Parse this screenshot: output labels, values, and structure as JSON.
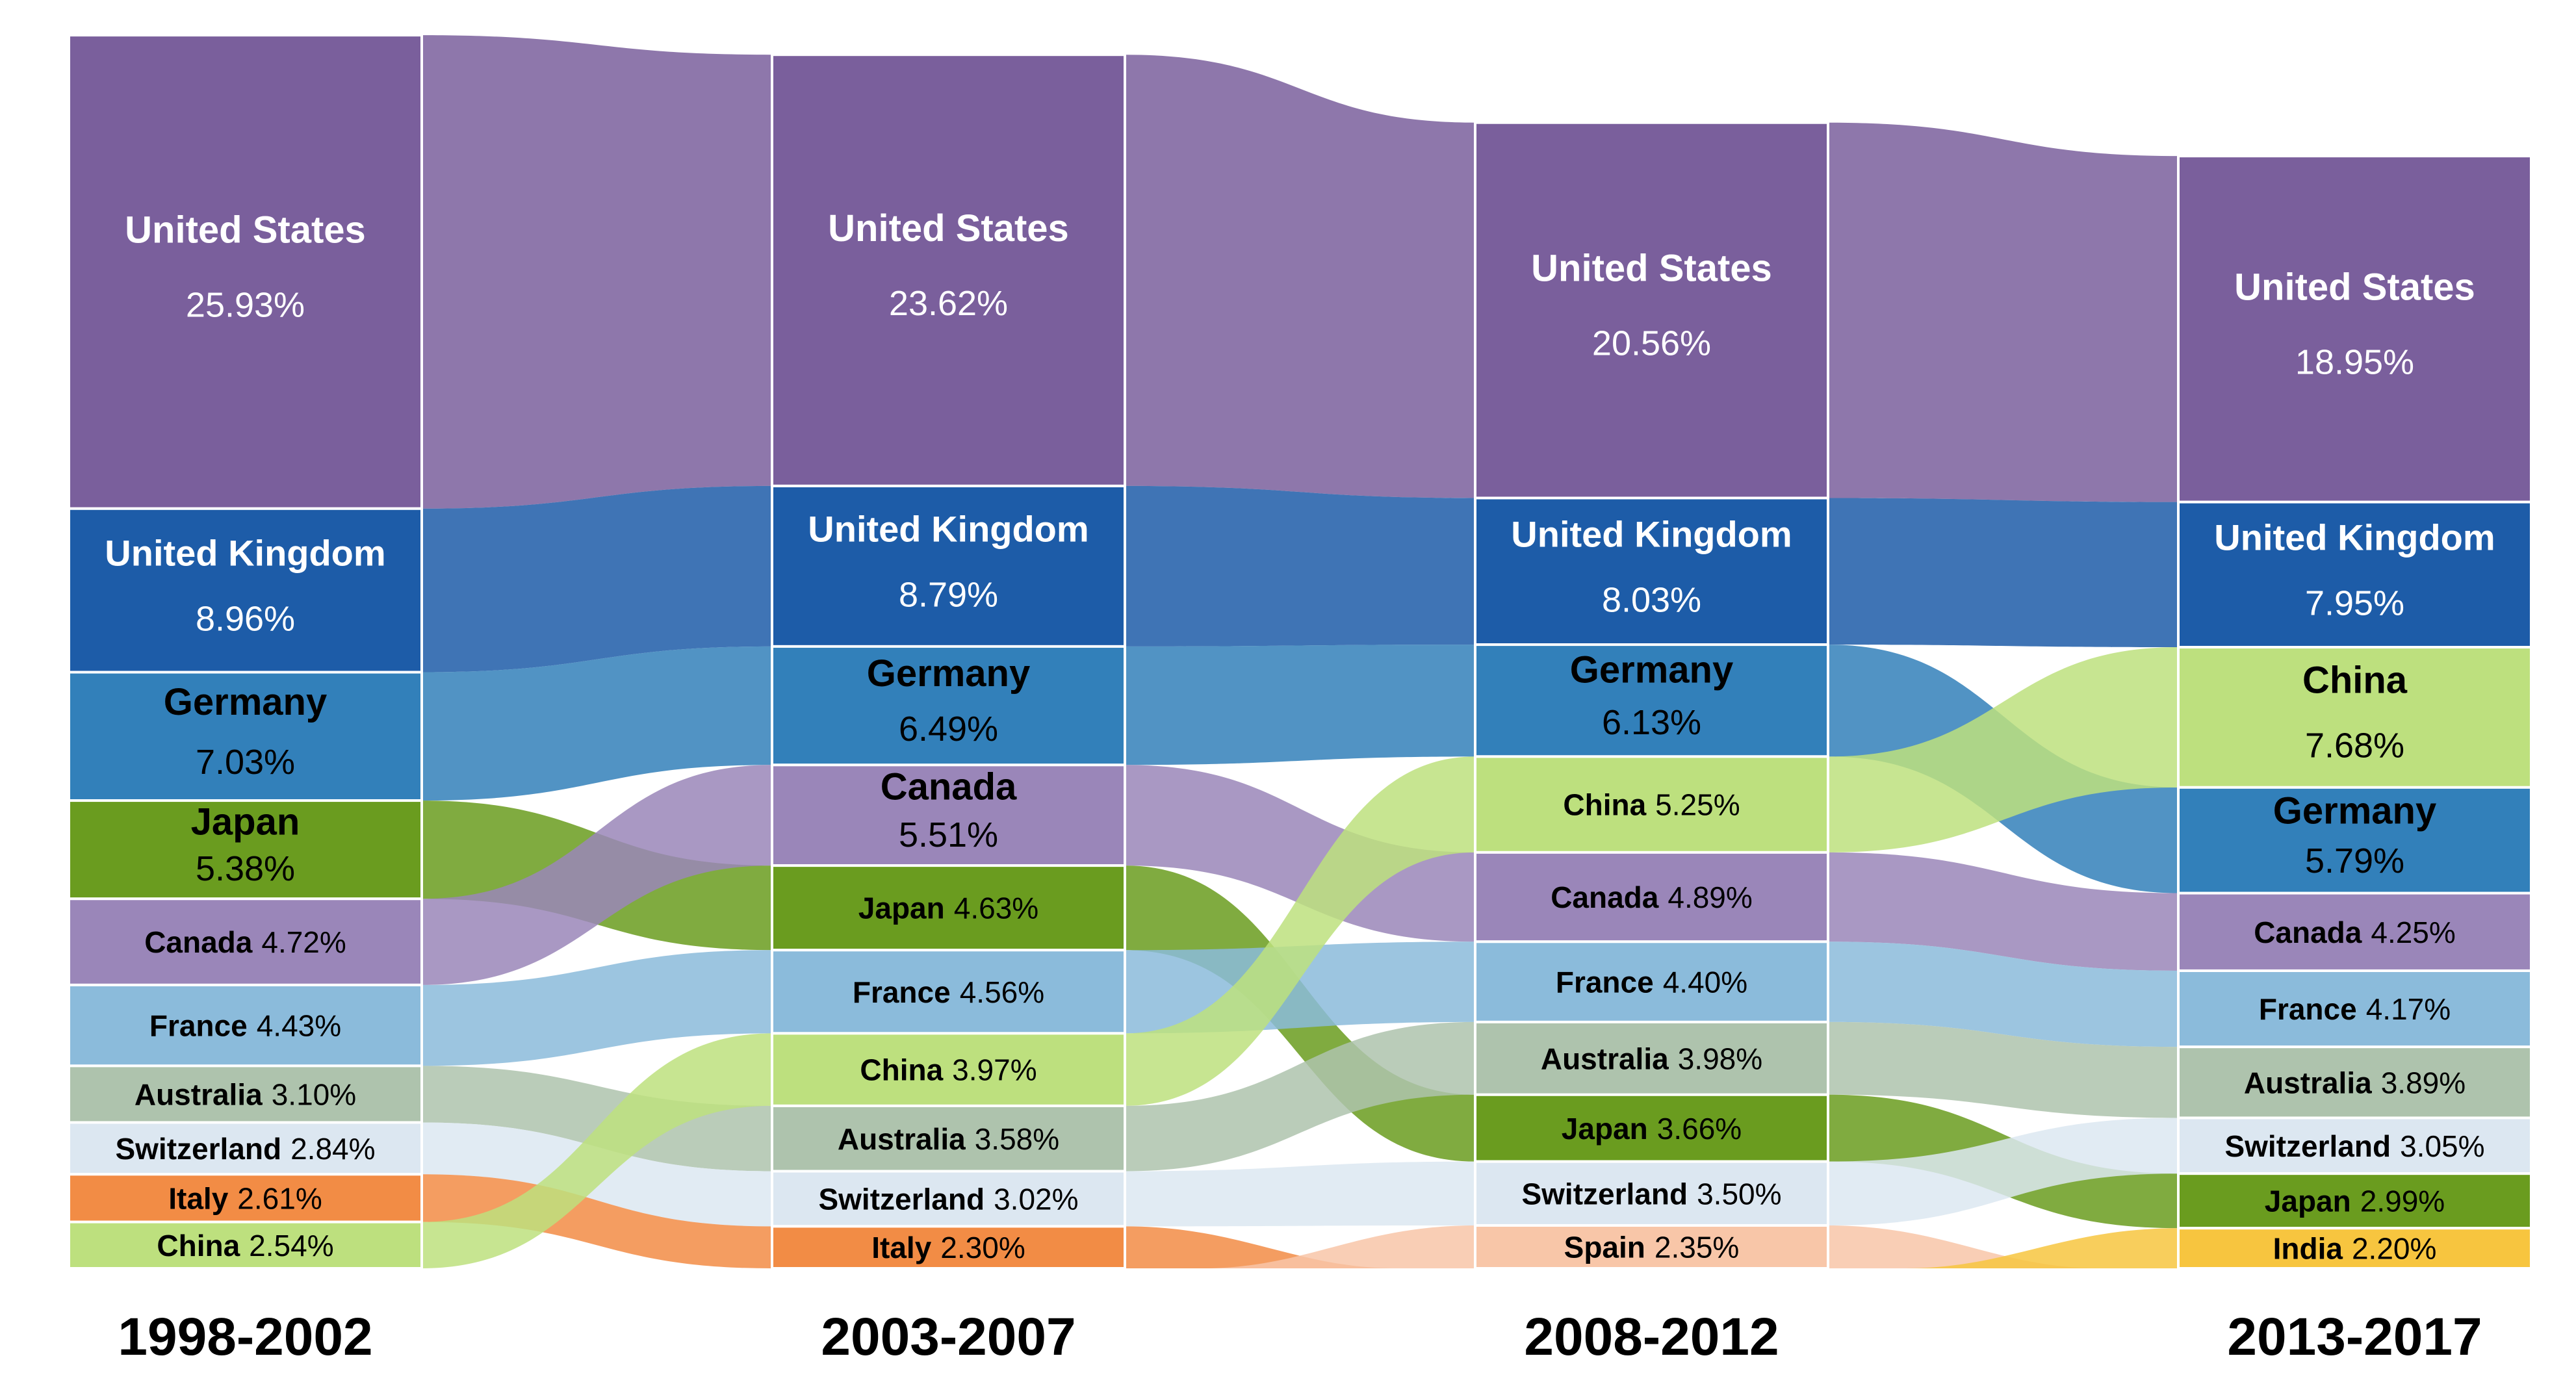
{
  "chart_data": {
    "type": "sankey",
    "periods": [
      "1998-2002",
      "2003-2007",
      "2008-2012",
      "2013-2017"
    ],
    "columns": [
      {
        "period": "1998-2002",
        "nodes": [
          {
            "country": "United States",
            "value": "25.93%"
          },
          {
            "country": "United Kingdom",
            "value": "8.96%"
          },
          {
            "country": "Germany",
            "value": "7.03%"
          },
          {
            "country": "Japan",
            "value": "5.38%"
          },
          {
            "country": "Canada",
            "value": "4.72%"
          },
          {
            "country": "France",
            "value": "4.43%"
          },
          {
            "country": "Australia",
            "value": "3.10%"
          },
          {
            "country": "Switzerland",
            "value": "2.84%"
          },
          {
            "country": "Italy",
            "value": "2.61%"
          },
          {
            "country": "China",
            "value": "2.54%"
          }
        ]
      },
      {
        "period": "2003-2007",
        "nodes": [
          {
            "country": "United States",
            "value": "23.62%"
          },
          {
            "country": "United Kingdom",
            "value": "8.79%"
          },
          {
            "country": "Germany",
            "value": "6.49%"
          },
          {
            "country": "Canada",
            "value": "5.51%"
          },
          {
            "country": "Japan",
            "value": "4.63%"
          },
          {
            "country": "France",
            "value": "4.56%"
          },
          {
            "country": "China",
            "value": "3.97%"
          },
          {
            "country": "Australia",
            "value": "3.58%"
          },
          {
            "country": "Switzerland",
            "value": "3.02%"
          },
          {
            "country": "Italy",
            "value": "2.30%"
          }
        ]
      },
      {
        "period": "2008-2012",
        "nodes": [
          {
            "country": "United States",
            "value": "20.56%"
          },
          {
            "country": "United Kingdom",
            "value": "8.03%"
          },
          {
            "country": "Germany",
            "value": "6.13%"
          },
          {
            "country": "China",
            "value": "5.25%"
          },
          {
            "country": "Canada",
            "value": "4.89%"
          },
          {
            "country": "France",
            "value": "4.40%"
          },
          {
            "country": "Australia",
            "value": "3.98%"
          },
          {
            "country": "Japan",
            "value": "3.66%"
          },
          {
            "country": "Switzerland",
            "value": "3.50%"
          },
          {
            "country": "Spain",
            "value": "2.35%"
          }
        ]
      },
      {
        "period": "2013-2017",
        "nodes": [
          {
            "country": "United States",
            "value": "18.95%"
          },
          {
            "country": "United Kingdom",
            "value": "7.95%"
          },
          {
            "country": "China",
            "value": "7.68%"
          },
          {
            "country": "Germany",
            "value": "5.79%"
          },
          {
            "country": "Canada",
            "value": "4.25%"
          },
          {
            "country": "France",
            "value": "4.17%"
          },
          {
            "country": "Australia",
            "value": "3.89%"
          },
          {
            "country": "Switzerland",
            "value": "3.05%"
          },
          {
            "country": "Japan",
            "value": "2.99%"
          },
          {
            "country": "India",
            "value": "2.20%"
          }
        ]
      }
    ],
    "colors": {
      "United States": "#7a5f9c",
      "United Kingdom": "#1d5ca8",
      "Germany": "#3280ba",
      "Japan": "#6a9c1f",
      "Canada": "#9a86b9",
      "France": "#8bbbdb",
      "Australia": "#aec3ad",
      "Switzerland": "#dce7f1",
      "Italy": "#f28c45",
      "China": "#bde07e",
      "Spain": "#f8c6a8",
      "India": "#f7c53f"
    }
  }
}
